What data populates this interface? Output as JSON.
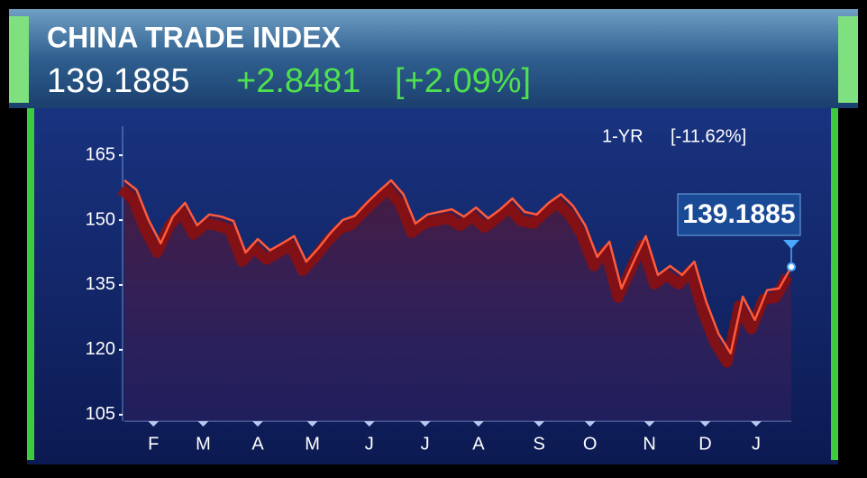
{
  "header": {
    "title": "CHINA TRADE INDEX",
    "price": "139.1885",
    "change": "+2.8481",
    "change_pct": "[+2.09%]"
  },
  "chart_data": {
    "type": "line",
    "period_label": "1-YR",
    "period_change": "[-11.62%]",
    "series": [
      {
        "color": "#ff5a3c",
        "values": [
          159.2,
          157,
          150,
          144.6,
          150.8,
          154,
          148.8,
          151.3,
          150.8,
          149.8,
          142.5,
          145.6,
          143,
          144.6,
          146.3,
          140.4,
          143.5,
          147,
          150,
          151,
          154,
          156.7,
          159.2,
          156,
          149.2,
          151.3,
          151.9,
          152.5,
          150.8,
          152.9,
          150.4,
          152.5,
          155,
          151.9,
          151.3,
          154,
          156,
          153.3,
          148.8,
          141.5,
          145,
          134.2,
          140.4,
          146.3,
          137.3,
          139.4,
          137.3,
          140.4,
          131,
          123.7,
          119.2,
          132.3,
          126.9,
          133.8,
          134.2,
          139.1885
        ]
      }
    ],
    "xlim": [
      0,
      55
    ],
    "xticks": [
      {
        "value": 2.4,
        "label": "F"
      },
      {
        "value": 6.5,
        "label": "M"
      },
      {
        "value": 11,
        "label": "A"
      },
      {
        "value": 15.5,
        "label": "M"
      },
      {
        "value": 20.2,
        "label": "J"
      },
      {
        "value": 24.8,
        "label": "J"
      },
      {
        "value": 29.2,
        "label": "A"
      },
      {
        "value": 34.2,
        "label": "S"
      },
      {
        "value": 38.4,
        "label": "O"
      },
      {
        "value": 43.3,
        "label": "N"
      },
      {
        "value": 47.9,
        "label": "D"
      },
      {
        "value": 52.1,
        "label": "J"
      }
    ],
    "ylim": [
      103.5,
      171.7
    ],
    "yticks": [
      105,
      120,
      135,
      150,
      165
    ],
    "grid": false
  }
}
